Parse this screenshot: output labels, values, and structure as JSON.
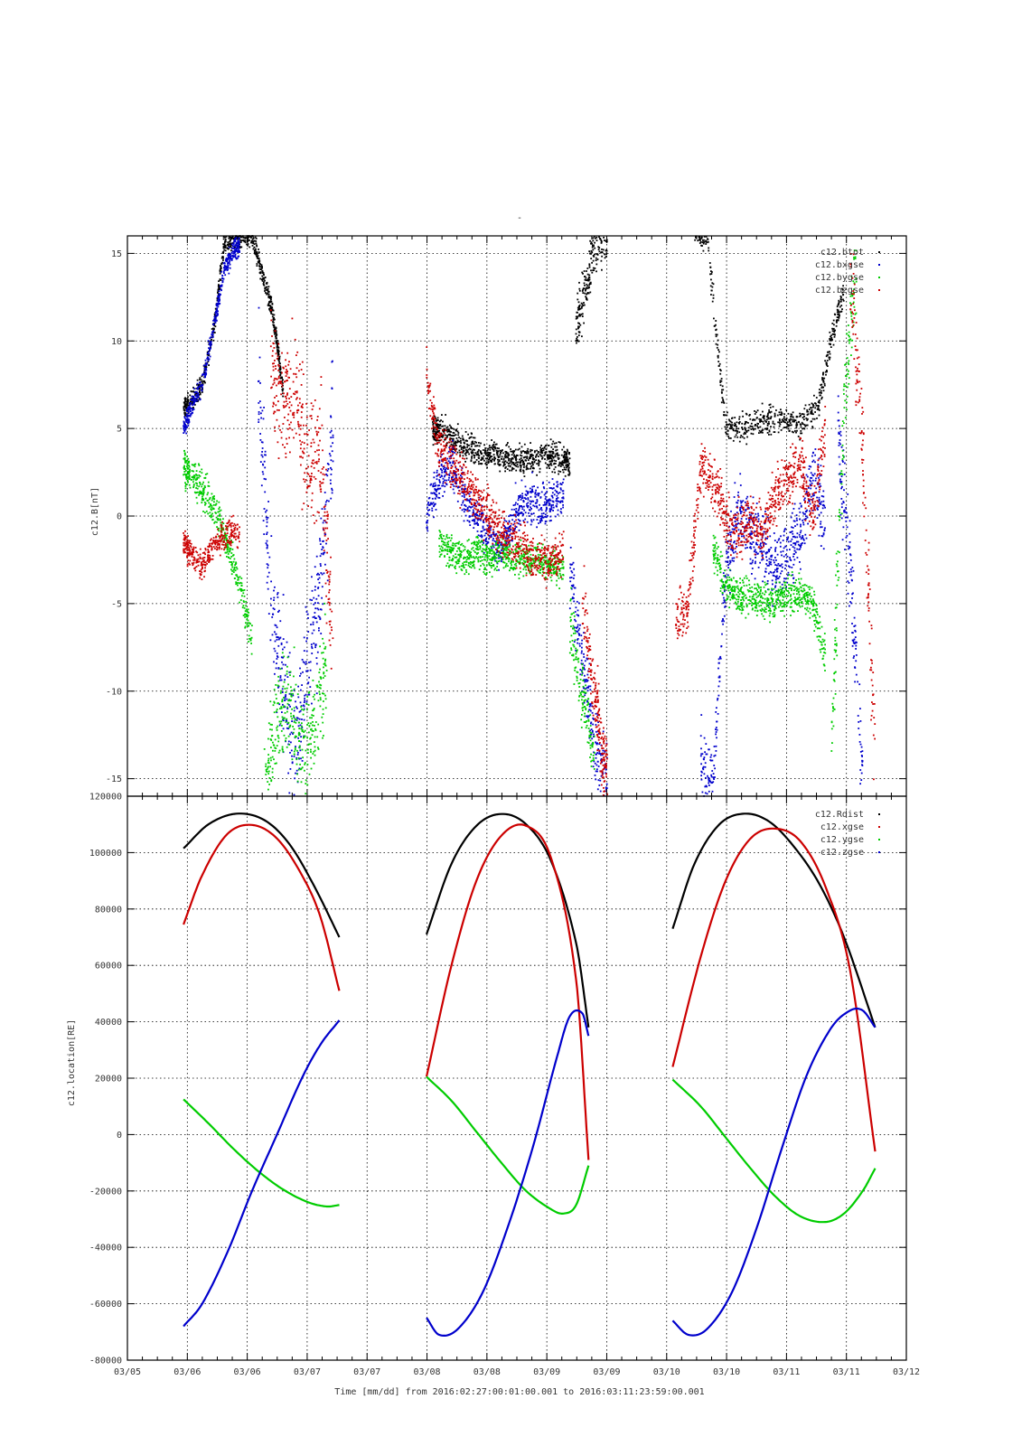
{
  "figure": {
    "top_title": "-",
    "footer": "Time [mm/dd]  from 2016:02:27:00:01:00.001  to  2016:03:11:23:59:00.001"
  },
  "colors": {
    "black": "#000000",
    "red": "#cc0000",
    "green": "#00cc00",
    "blue": "#0000cc"
  },
  "chart_data": [
    {
      "type": "scatter",
      "ylabel": "c12.B[nT]",
      "xlabel": "",
      "ylim": [
        -16,
        16
      ],
      "yticks": [
        15,
        10,
        5,
        0,
        -5,
        -10,
        -15
      ],
      "grid": true,
      "legend_position": "top-right",
      "x_unit": "day offset from 03/05 00:00",
      "series": [
        {
          "name": "c12.btot",
          "color": "#000000",
          "segments": [
            {
              "x": [
                0.9,
                1.0,
                1.2,
                1.4,
                1.55,
                1.7,
                1.85,
                2.0,
                2.15,
                2.3,
                2.4,
                2.5
              ],
              "y": [
                6,
                6.5,
                7.5,
                11,
                15.5,
                16,
                16,
                16,
                14,
                12,
                10,
                7
              ],
              "spread": 0.6
            },
            {
              "x": [
                4.9,
                5.0,
                5.2,
                5.4,
                5.6,
                5.8,
                6.0,
                6.2,
                6.4,
                6.6,
                6.8,
                7.0,
                7.1
              ],
              "y": [
                4.8,
                5.0,
                4.5,
                4.0,
                3.7,
                3.5,
                3.4,
                3.2,
                3.2,
                3.4,
                3.4,
                3.2,
                3.0
              ],
              "spread": 0.8
            },
            {
              "x": [
                7.2,
                7.35,
                7.5,
                7.7
              ],
              "y": [
                11,
                13,
                15.5,
                16
              ],
              "spread": 1.5
            },
            {
              "x": [
                9.1,
                9.3,
                9.6,
                9.9,
                10.2,
                10.5,
                10.8,
                11.1,
                11.3,
                11.5
              ],
              "y": [
                16,
                16,
                5,
                5,
                5.5,
                5.5,
                5.2,
                6.5,
                10,
                13
              ],
              "spread": 0.8
            }
          ]
        },
        {
          "name": "c12.bxgse",
          "color": "#0000cc",
          "segments": [
            {
              "x": [
                0.9,
                1.0,
                1.2,
                1.4,
                1.55,
                1.7,
                1.8
              ],
              "y": [
                5,
                6,
                7.5,
                11,
                14,
                15.2,
                15.5
              ],
              "spread": 0.6
            },
            {
              "x": [
                2.1,
                2.3,
                2.5,
                2.7,
                2.9,
                3.1,
                3.3
              ],
              "y": [
                8,
                -5,
                -9,
                -14,
                -8,
                -4,
                5
              ],
              "spread": 3.5
            },
            {
              "x": [
                4.8,
                5.0,
                5.2,
                5.4,
                5.6,
                5.8,
                6.0,
                6.2,
                6.4,
                6.6,
                6.8,
                7.0
              ],
              "y": [
                0,
                2,
                3,
                1,
                0,
                -1,
                -2,
                0,
                1,
                0.5,
                0.8,
                1.5
              ],
              "spread": 1.2
            },
            {
              "x": [
                7.1,
                7.3,
                7.5,
                7.7
              ],
              "y": [
                -3,
                -8,
                -13,
                -15
              ],
              "spread": 2
            },
            {
              "x": [
                9.2,
                9.4,
                9.6,
                9.8,
                10.0,
                10.2,
                10.4,
                10.6,
                10.8,
                11.0,
                11.2
              ],
              "y": [
                -14,
                -15,
                -3,
                0,
                -1,
                -2,
                -3,
                -2,
                -1,
                2,
                0
              ],
              "spread": 2
            },
            {
              "x": [
                11.4,
                11.6,
                11.8
              ],
              "y": [
                5,
                -3,
                -15
              ],
              "spread": 3
            }
          ]
        },
        {
          "name": "c12.bygse",
          "color": "#00cc00",
          "segments": [
            {
              "x": [
                0.9,
                1.0,
                1.2,
                1.4,
                1.6,
                1.8,
                2.0
              ],
              "y": [
                3,
                2.5,
                1.5,
                0.5,
                -1.5,
                -4,
                -7
              ],
              "spread": 1
            },
            {
              "x": [
                2.2,
                2.4,
                2.6,
                2.8,
                3.0,
                3.2
              ],
              "y": [
                -15,
                -12,
                -10,
                -14,
                -12,
                -8
              ],
              "spread": 3
            },
            {
              "x": [
                5.0,
                5.2,
                5.4,
                5.6,
                5.8,
                6.0,
                6.2,
                6.4,
                6.6,
                6.8,
                7.0
              ],
              "y": [
                -1.5,
                -2,
                -2.5,
                -2,
                -2.5,
                -2,
                -2.5,
                -2.5,
                -2.5,
                -2.8,
                -3
              ],
              "spread": 0.9
            },
            {
              "x": [
                7.1,
                7.3,
                7.5
              ],
              "y": [
                -6,
                -10,
                -14
              ],
              "spread": 2
            },
            {
              "x": [
                9.4,
                9.6,
                9.8,
                10.0,
                10.2,
                10.4,
                10.6,
                10.8,
                11.0,
                11.2
              ],
              "y": [
                -2,
                -4,
                -4.5,
                -4.5,
                -4.8,
                -5,
                -4.5,
                -4.5,
                -5,
                -8
              ],
              "spread": 1
            },
            {
              "x": [
                11.3,
                11.5,
                11.7
              ],
              "y": [
                -13,
                6,
                15
              ],
              "spread": 3
            }
          ]
        },
        {
          "name": "c12.bzgse",
          "color": "#cc0000",
          "segments": [
            {
              "x": [
                0.9,
                1.0,
                1.2,
                1.4,
                1.6,
                1.8
              ],
              "y": [
                -1.5,
                -2,
                -3,
                -1.5,
                -1,
                -1
              ],
              "spread": 0.8
            },
            {
              "x": [
                2.3,
                2.5,
                2.7,
                2.9,
                3.1,
                3.3
              ],
              "y": [
                9,
                6,
                7,
                3,
                4,
                -8
              ],
              "spread": 3.5
            },
            {
              "x": [
                4.8,
                5.0,
                5.2,
                5.4,
                5.6,
                5.8,
                6.0,
                6.2,
                6.4,
                6.6,
                6.8,
                7.0
              ],
              "y": [
                8,
                4,
                3,
                2,
                1,
                0,
                -1,
                -1.5,
                -2,
                -2.5,
                -2.5,
                -2
              ],
              "spread": 1.3
            },
            {
              "x": [
                7.3,
                7.5,
                7.6,
                7.7
              ],
              "y": [
                -5,
                -10,
                -13,
                -15
              ],
              "spread": 2
            },
            {
              "x": [
                8.8,
                9.0,
                9.2,
                9.4,
                9.6,
                9.8,
                10.0,
                10.2,
                10.4,
                10.6,
                10.8,
                11.0,
                11.2
              ],
              "y": [
                -6,
                -5,
                3,
                2,
                0,
                -1,
                0,
                -1,
                1,
                2,
                3,
                0,
                5
              ],
              "spread": 1.5
            },
            {
              "x": [
                11.6,
                11.8,
                12.0
              ],
              "y": [
                14,
                4,
                -14
              ],
              "spread": 3
            }
          ]
        }
      ]
    },
    {
      "type": "line",
      "ylabel": "c12.location[RE]",
      "xlabel": "Time [mm/dd]  from 2016:02:27:00:01:00.001  to  2016:03:11:23:59:00.001",
      "ylim": [
        -80000,
        120000
      ],
      "yticks": [
        120000,
        100000,
        80000,
        60000,
        40000,
        20000,
        0,
        -20000,
        -40000,
        -60000,
        -80000
      ],
      "grid": true,
      "legend_position": "top-right",
      "xticks": [
        "03/05",
        "03/06",
        "03/06",
        "03/07",
        "03/07",
        "03/08",
        "03/08",
        "03/09",
        "03/09",
        "03/10",
        "03/10",
        "03/11",
        "03/11",
        "03/12"
      ],
      "x_unit": "day offset from 03/05 00:00",
      "series": [
        {
          "name": "c12.Rdist",
          "color": "#000000",
          "segments": [
            {
              "x": [
                0.9,
                1.3,
                1.75,
                2.2,
                2.6,
                3.0,
                3.4
              ],
              "y": [
                101500,
                110000,
                113800,
                111500,
                103000,
                88000,
                70000
              ]
            },
            {
              "x": [
                4.8,
                5.2,
                5.6,
                6.0,
                6.4,
                6.8,
                7.2,
                7.4
              ],
              "y": [
                71000,
                96000,
                109500,
                113700,
                110000,
                97000,
                68000,
                38000
              ]
            },
            {
              "x": [
                8.75,
                9.1,
                9.5,
                9.9,
                10.3,
                10.7,
                11.1,
                11.5,
                12.0
              ],
              "y": [
                73000,
                96000,
                110000,
                113800,
                111000,
                102000,
                89000,
                70000,
                38000
              ]
            }
          ]
        },
        {
          "name": "c12.xgse",
          "color": "#cc0000",
          "segments": [
            {
              "x": [
                0.9,
                1.2,
                1.6,
                2.0,
                2.4,
                2.8,
                3.1,
                3.4
              ],
              "y": [
                74500,
                92000,
                106500,
                109800,
                105000,
                92000,
                77000,
                51000
              ]
            },
            {
              "x": [
                4.8,
                5.2,
                5.6,
                6.0,
                6.4,
                6.8,
                7.2,
                7.4
              ],
              "y": [
                20500,
                60000,
                90000,
                106000,
                109500,
                98000,
                55000,
                -9000
              ]
            },
            {
              "x": [
                8.75,
                9.2,
                9.6,
                10.0,
                10.4,
                10.8,
                11.2,
                11.6,
                12.0
              ],
              "y": [
                24000,
                63000,
                90000,
                105000,
                108500,
                104000,
                88000,
                58000,
                -6000
              ]
            }
          ]
        },
        {
          "name": "c12.ygse",
          "color": "#00cc00",
          "segments": [
            {
              "x": [
                0.9,
                1.3,
                1.7,
                2.1,
                2.5,
                2.9,
                3.2,
                3.4
              ],
              "y": [
                12500,
                4000,
                -5000,
                -13000,
                -19500,
                -24000,
                -25500,
                -25000
              ]
            },
            {
              "x": [
                4.8,
                5.2,
                5.6,
                6.0,
                6.4,
                6.8,
                7.0,
                7.2,
                7.4
              ],
              "y": [
                20500,
                12000,
                1000,
                -10000,
                -20000,
                -26500,
                -28000,
                -25000,
                -11000
              ]
            },
            {
              "x": [
                8.75,
                9.2,
                9.6,
                10.0,
                10.4,
                10.8,
                11.2,
                11.5,
                11.8,
                12.0
              ],
              "y": [
                19500,
                10000,
                -1000,
                -12000,
                -22000,
                -29000,
                -31000,
                -28000,
                -20000,
                -12000
              ]
            }
          ]
        },
        {
          "name": "c12.zgse",
          "color": "#0000cc",
          "segments": [
            {
              "x": [
                0.9,
                1.2,
                1.6,
                2.0,
                2.4,
                2.8,
                3.1,
                3.4
              ],
              "y": [
                -68000,
                -60000,
                -42000,
                -20000,
                0,
                20000,
                32000,
                40500
              ]
            },
            {
              "x": [
                4.8,
                5.0,
                5.3,
                5.7,
                6.1,
                6.5,
                6.9,
                7.1,
                7.3,
                7.4
              ],
              "y": [
                -65000,
                -71000,
                -69000,
                -56000,
                -33000,
                -5000,
                28000,
                42000,
                43000,
                35000
              ]
            },
            {
              "x": [
                8.75,
                9.0,
                9.3,
                9.7,
                10.1,
                10.5,
                10.9,
                11.3,
                11.6,
                11.8,
                12.0
              ],
              "y": [
                -66000,
                -71000,
                -69000,
                -56000,
                -33000,
                -5000,
                21000,
                38000,
                44000,
                44000,
                38000
              ]
            }
          ]
        }
      ]
    }
  ]
}
